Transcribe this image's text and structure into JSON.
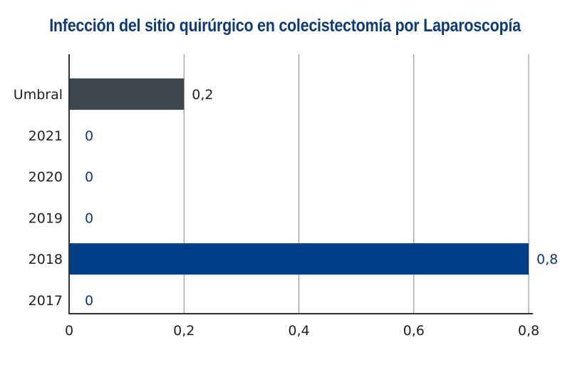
{
  "chart_data": {
    "type": "bar",
    "orientation": "horizontal",
    "title": "Infección del sitio quirúrgico en colecistectomía por Laparoscopía",
    "categories": [
      "Umbral",
      "2021",
      "2020",
      "2019",
      "2018",
      "2017"
    ],
    "values": [
      0.2,
      0,
      0,
      0,
      0.8,
      0
    ],
    "value_labels": [
      "0,2",
      "0",
      "0",
      "0",
      "0,8",
      "0"
    ],
    "xlim": [
      0,
      0.8
    ],
    "x_ticks": [
      0,
      0.2,
      0.4,
      0.6,
      0.8
    ],
    "x_tick_labels": [
      "0",
      "0,2",
      "0,4",
      "0,6",
      "0,8"
    ],
    "grid": "vertical",
    "colors": {
      "threshold_bar": "#3d4750",
      "year_bar": "#003f87",
      "threshold_label": "#222222",
      "year_label": "#0d3a78",
      "title": "#0d3a78",
      "axis": "#333333",
      "grid": "#888888"
    }
  }
}
